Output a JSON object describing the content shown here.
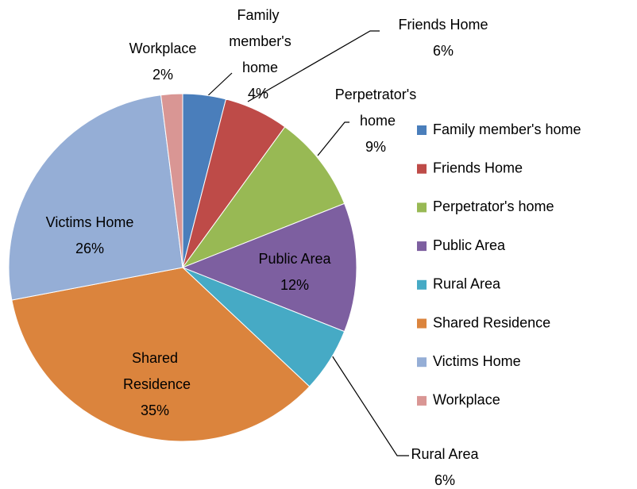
{
  "chart_data": {
    "type": "pie",
    "categories": [
      "Family member's home",
      "Friends Home",
      "Perpetrator's home",
      "Public Area",
      "Rural Area",
      "Shared Residence",
      "Victims Home",
      "Workplace"
    ],
    "values": [
      4,
      6,
      9,
      12,
      6,
      35,
      26,
      2
    ],
    "value_labels": [
      "4%",
      "6%",
      "9%",
      "12%",
      "6%",
      "35%",
      "26%",
      "2%"
    ],
    "colors": [
      "#4a7ebb",
      "#be4b48",
      "#98b954",
      "#7d5fa0",
      "#46aac5",
      "#db843d",
      "#95aed6",
      "#d99694"
    ],
    "legend": "right"
  }
}
